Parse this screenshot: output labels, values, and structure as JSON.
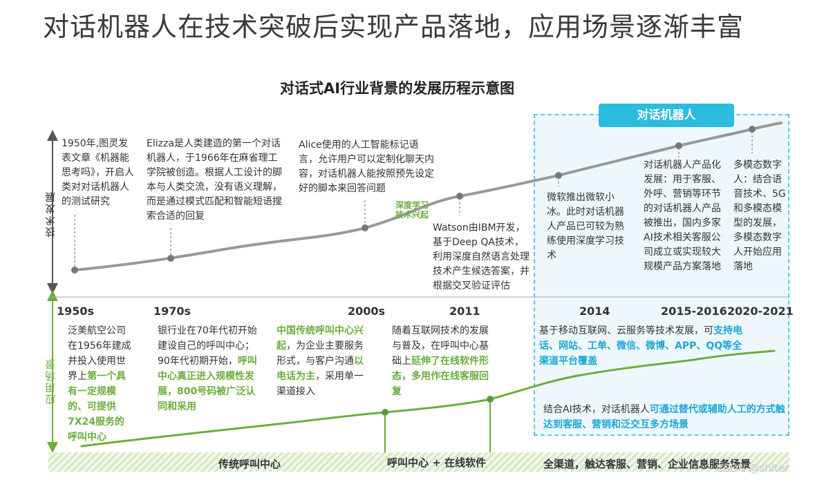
{
  "title": "对话机器人在技术突破后实现产品落地，应用场景逐渐丰富",
  "subtitle": "对话式AI行业背景的发展历程示意图",
  "robot_label": "对话机器人",
  "axis": {
    "tech": "技术发展",
    "app": "应用场景"
  },
  "eras": [
    "1950s",
    "1970s",
    "2000s",
    "2011",
    "2014",
    "2015-2016",
    "2020-2021"
  ],
  "tech_events": [
    "1950年,图灵发表文章《机器能思考吗》，开启人类对对话机器人的测试研究",
    "Elizza是人类建造的第一个对话机器人，于1966年在麻省理工学院被创造。根据人工设计的脚本与人类交流，没有语义理解，而是通过模式匹配和智能短语搜索合适的回复",
    "Alice使用的人工智能标记语言，允许用户可以定制化聊天内容，对话机器人能按照预先设定好的脚本来回答问题",
    "Watson由IBM开发，基于Deep QA技术，利用深度自然语言处理技术产生候选答案，并根据交叉验证评估",
    "微软推出微软小冰。此时对话机器人产品已可较为熟练使用深度学习技术",
    "对话机器人产品化发展：用于客服、外呼、营销等环节的对话机器人产品被推出，国内多家AI技术相关客服公司成立或实现较大规模产品方案落地",
    "多模态数字人：结合语音技术、5G和多模态模型的发展，多模态数字人开始应用落地"
  ],
  "deep_learning": {
    "line1": "深度学习",
    "line2": "技术兴起"
  },
  "app_events": {
    "e1": {
      "p1": "泛美航空公司在1956年建成并投入使用世界上",
      "h1": "第一个具有一定规模的、可提供7X24服务的呼叫中心"
    },
    "e2": {
      "p1": "银行业在70年代初开始建设自己的呼叫中心；90年代初期开始，",
      "h1": "呼叫中心真正进入规模性发展，800号码被广泛认同和采用"
    },
    "e3": {
      "h1": "中国传统呼叫中心兴起",
      "p1": "，为企业主要服务形式，与客户沟通",
      "h2": "以电话为主",
      "p2": "，采用单一渠道接入"
    },
    "e4": {
      "p1": "随着互联网技术的发展与普及，在呼叫中心基础上",
      "h1": "延伸了在线软件形态，多用作在线客服回复"
    },
    "e5": {
      "p1": "基于移动互联网、云服务等技术发展，可",
      "h1": "支持电话、网站、工单、微信、微博、APP、QQ等全渠道平台覆盖"
    },
    "e6": {
      "p1": "结合AI技术，对话机器人",
      "h1": "可通过替代或辅助人工的方式触达到客服、营销和泛交互多方场景"
    }
  },
  "stages": [
    "传统呼叫中心",
    "呼叫中心 + 在线软件",
    "全渠道，触达客服、营销、企业信息服务场景"
  ],
  "watermark": "CSDN @shiter",
  "colors": {
    "accent": "#2bbce0",
    "green": "#6aae3c",
    "highlight": "#1aa7d6",
    "line": "#8a8a8a"
  }
}
